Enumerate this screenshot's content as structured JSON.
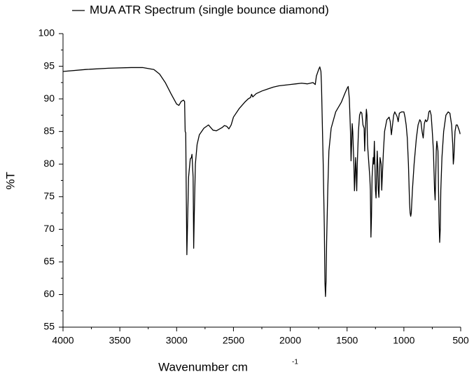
{
  "chart_data": {
    "type": "line",
    "xlabel": {
      "text": "Wavenumber cm",
      "superscript": "-1"
    },
    "ylabel": "%T",
    "xlim": [
      4000,
      500
    ],
    "ylim": [
      55,
      100
    ],
    "xticks": [
      4000,
      3500,
      3000,
      2500,
      2000,
      1500,
      1000,
      500
    ],
    "yticks": [
      55,
      60,
      65,
      70,
      75,
      80,
      85,
      90,
      95,
      100
    ],
    "xminor_ticks": [
      3750,
      3250,
      2750,
      2250,
      1750,
      1250,
      750
    ],
    "yminor_ticks": [
      57.5,
      62.5,
      67.5,
      72.5,
      77.5,
      82.5,
      87.5,
      92.5,
      97.5
    ],
    "grid": false,
    "legend": "top-left",
    "series": [
      {
        "name": "MUA ATR Spectrum (single bounce diamond)",
        "color": "#000000",
        "x": [
          4000,
          3800,
          3600,
          3400,
          3300,
          3200,
          3150,
          3100,
          3050,
          3000,
          2980,
          2960,
          2940,
          2930,
          2925,
          2920,
          2915,
          2910,
          2905,
          2895,
          2880,
          2870,
          2865,
          2855,
          2850,
          2845,
          2835,
          2820,
          2800,
          2760,
          2720,
          2700,
          2680,
          2650,
          2600,
          2580,
          2560,
          2540,
          2520,
          2500,
          2450,
          2400,
          2370,
          2350,
          2340,
          2330,
          2300,
          2250,
          2200,
          2150,
          2100,
          2000,
          1950,
          1900,
          1850,
          1800,
          1780,
          1770,
          1750,
          1740,
          1730,
          1725,
          1720,
          1710,
          1700,
          1695,
          1690,
          1685,
          1680,
          1670,
          1660,
          1640,
          1600,
          1550,
          1520,
          1500,
          1490,
          1480,
          1470,
          1465,
          1460,
          1455,
          1450,
          1440,
          1435,
          1430,
          1425,
          1420,
          1415,
          1410,
          1400,
          1390,
          1380,
          1370,
          1360,
          1350,
          1345,
          1340,
          1330,
          1325,
          1320,
          1310,
          1300,
          1295,
          1290,
          1285,
          1280,
          1270,
          1265,
          1260,
          1255,
          1250,
          1245,
          1240,
          1235,
          1230,
          1225,
          1220,
          1215,
          1210,
          1200,
          1195,
          1190,
          1180,
          1170,
          1150,
          1130,
          1120,
          1110,
          1100,
          1090,
          1080,
          1060,
          1050,
          1040,
          1020,
          1000,
          990,
          980,
          970,
          960,
          950,
          945,
          940,
          935,
          925,
          910,
          890,
          875,
          860,
          850,
          840,
          830,
          820,
          810,
          800,
          790,
          780,
          770,
          760,
          750,
          740,
          730,
          725,
          720,
          715,
          710,
          700,
          695,
          690,
          685,
          680,
          675,
          665,
          650,
          630,
          610,
          595,
          580,
          570,
          565,
          560,
          550,
          540,
          530,
          520,
          510,
          505
        ],
        "values": [
          94.2,
          94.5,
          94.7,
          94.8,
          94.8,
          94.5,
          93.8,
          92.5,
          90.8,
          89.2,
          89.0,
          89.6,
          89.8,
          89.6,
          85.0,
          84.8,
          75,
          66.1,
          70,
          78,
          80.8,
          81.0,
          81.5,
          78,
          67.1,
          72,
          80,
          83,
          84.5,
          85.5,
          86.0,
          85.6,
          85.2,
          85.1,
          85.6,
          85.9,
          85.8,
          85.4,
          86.0,
          87.2,
          88.5,
          89.5,
          90.0,
          90.2,
          90.7,
          90.3,
          90.8,
          91.2,
          91.5,
          91.8,
          92.0,
          92.2,
          92.3,
          92.4,
          92.3,
          92.5,
          92.2,
          93.5,
          94.5,
          94.9,
          94.2,
          92,
          88,
          80,
          70,
          62,
          59.7,
          62,
          68,
          76,
          82,
          85.5,
          88.0,
          89.5,
          90.8,
          91.6,
          91.9,
          90,
          85,
          80.5,
          83,
          86.2,
          85,
          80,
          75.9,
          78,
          81,
          79,
          75.9,
          80,
          85,
          87.5,
          88.0,
          87.8,
          86.0,
          85.5,
          82,
          85,
          88.4,
          87.5,
          83,
          80.5,
          78,
          76,
          68.8,
          72,
          78,
          81,
          80,
          83.5,
          80,
          76,
          74.8,
          78,
          82,
          80,
          76,
          74.9,
          78,
          81,
          80,
          76,
          78,
          82,
          85,
          86.8,
          87.2,
          86.5,
          84.5,
          86,
          87.5,
          88,
          87.3,
          86.5,
          87.8,
          88,
          88,
          87.2,
          86,
          84,
          80,
          74,
          72.5,
          72,
          72.5,
          76,
          80,
          84,
          86,
          86.8,
          86.5,
          85,
          84,
          86.2,
          86.8,
          86.5,
          86.8,
          88,
          88.2,
          87.5,
          85,
          82,
          76,
          74.5,
          78,
          82,
          83.5,
          82,
          76,
          71,
          68,
          70,
          76,
          81,
          85,
          87.5,
          88,
          87.8,
          86,
          83,
          80,
          81,
          85,
          86,
          86,
          85.5,
          85,
          84.6
        ]
      }
    ]
  }
}
